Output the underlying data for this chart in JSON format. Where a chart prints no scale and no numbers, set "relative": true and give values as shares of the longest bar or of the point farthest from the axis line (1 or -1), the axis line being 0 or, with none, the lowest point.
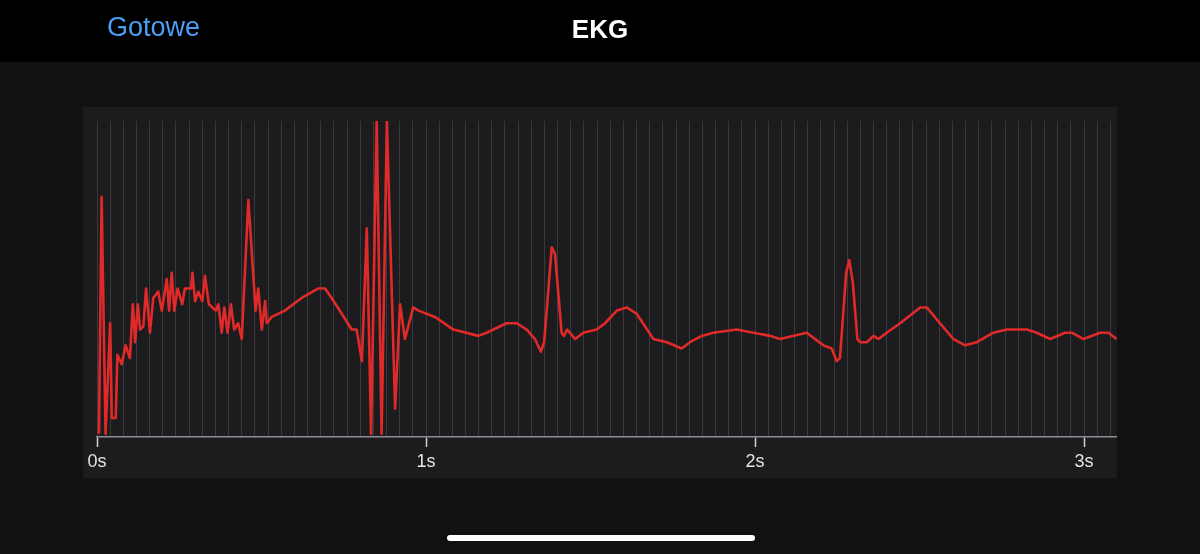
{
  "chart_data": {
    "type": "line",
    "title": "EKG",
    "annotations": [
      "Gotowe"
    ],
    "relative": true,
    "color": "#e02a2a",
    "marker": "none",
    "grid": "x",
    "xlim": [
      0,
      3.1
    ],
    "xticks": [
      {
        "value": 0,
        "label": "0s"
      },
      {
        "value": 0.04,
        "label": null
      },
      {
        "value": 0.08,
        "label": null
      },
      {
        "value": 0.12,
        "label": null
      },
      {
        "value": 0.16,
        "label": null
      },
      {
        "value": 0.2,
        "label": null
      },
      {
        "value": 0.24,
        "label": null
      },
      {
        "value": 0.28,
        "label": null
      },
      {
        "value": 0.32,
        "label": null
      },
      {
        "value": 0.36,
        "label": null
      },
      {
        "value": 0.4,
        "label": null
      },
      {
        "value": 0.44,
        "label": null
      },
      {
        "value": 0.48,
        "label": null
      },
      {
        "value": 0.52,
        "label": null
      },
      {
        "value": 0.56,
        "label": null
      },
      {
        "value": 0.6,
        "label": null
      },
      {
        "value": 0.64,
        "label": null
      },
      {
        "value": 0.68,
        "label": null
      },
      {
        "value": 0.72,
        "label": null
      },
      {
        "value": 0.76,
        "label": null
      },
      {
        "value": 0.8,
        "label": null
      },
      {
        "value": 0.84,
        "label": null
      },
      {
        "value": 0.88,
        "label": null
      },
      {
        "value": 0.92,
        "label": null
      },
      {
        "value": 0.96,
        "label": null
      },
      {
        "value": 1,
        "label": "1s"
      },
      {
        "value": 1.04,
        "label": null
      },
      {
        "value": 1.08,
        "label": null
      },
      {
        "value": 1.12,
        "label": null
      },
      {
        "value": 1.16,
        "label": null
      },
      {
        "value": 1.2,
        "label": null
      },
      {
        "value": 1.24,
        "label": null
      },
      {
        "value": 1.28,
        "label": null
      },
      {
        "value": 1.32,
        "label": null
      },
      {
        "value": 1.36,
        "label": null
      },
      {
        "value": 1.4,
        "label": null
      },
      {
        "value": 1.44,
        "label": null
      },
      {
        "value": 1.48,
        "label": null
      },
      {
        "value": 1.52,
        "label": null
      },
      {
        "value": 1.56,
        "label": null
      },
      {
        "value": 1.6,
        "label": null
      },
      {
        "value": 1.64,
        "label": null
      },
      {
        "value": 1.68,
        "label": null
      },
      {
        "value": 1.72,
        "label": null
      },
      {
        "value": 1.76,
        "label": null
      },
      {
        "value": 1.8,
        "label": null
      },
      {
        "value": 1.84,
        "label": null
      },
      {
        "value": 1.88,
        "label": null
      },
      {
        "value": 1.92,
        "label": null
      },
      {
        "value": 1.96,
        "label": null
      },
      {
        "value": 2,
        "label": "2s"
      },
      {
        "value": 2.04,
        "label": null
      },
      {
        "value": 2.08,
        "label": null
      },
      {
        "value": 2.12,
        "label": null
      },
      {
        "value": 2.16,
        "label": null
      },
      {
        "value": 2.2,
        "label": null
      },
      {
        "value": 2.24,
        "label": null
      },
      {
        "value": 2.28,
        "label": null
      },
      {
        "value": 2.32,
        "label": null
      },
      {
        "value": 2.36,
        "label": null
      },
      {
        "value": 2.4,
        "label": null
      },
      {
        "value": 2.44,
        "label": null
      },
      {
        "value": 2.48,
        "label": null
      },
      {
        "value": 2.52,
        "label": null
      },
      {
        "value": 2.56,
        "label": null
      },
      {
        "value": 2.6,
        "label": null
      },
      {
        "value": 2.64,
        "label": null
      },
      {
        "value": 2.68,
        "label": null
      },
      {
        "value": 2.72,
        "label": null
      },
      {
        "value": 2.76,
        "label": null
      },
      {
        "value": 2.8,
        "label": null
      },
      {
        "value": 2.84,
        "label": null
      },
      {
        "value": 2.88,
        "label": null
      },
      {
        "value": 2.92,
        "label": null
      },
      {
        "value": 2.96,
        "label": null
      },
      {
        "value": 3,
        "label": "3s"
      },
      {
        "value": 3.04,
        "label": null
      },
      {
        "value": 3.08,
        "label": null
      }
    ],
    "x": [
      0.006,
      0.014,
      0.026,
      0.04,
      0.045,
      0.057,
      0.062,
      0.075,
      0.087,
      0.1,
      0.109,
      0.116,
      0.124,
      0.131,
      0.141,
      0.149,
      0.161,
      0.171,
      0.186,
      0.197,
      0.212,
      0.219,
      0.227,
      0.235,
      0.245,
      0.259,
      0.267,
      0.286,
      0.29,
      0.298,
      0.308,
      0.32,
      0.328,
      0.34,
      0.361,
      0.369,
      0.379,
      0.387,
      0.397,
      0.407,
      0.417,
      0.429,
      0.44,
      0.46,
      0.482,
      0.49,
      0.501,
      0.511,
      0.516,
      0.531,
      0.571,
      0.622,
      0.673,
      0.693,
      0.713,
      0.744,
      0.774,
      0.789,
      0.805,
      0.82,
      0.833,
      0.85,
      0.865,
      0.881,
      0.906,
      0.921,
      0.936,
      0.961,
      0.977,
      1.027,
      1.083,
      1.159,
      1.184,
      1.245,
      1.276,
      1.306,
      1.331,
      1.349,
      1.359,
      1.382,
      1.392,
      1.412,
      1.419,
      1.429,
      1.453,
      1.478,
      1.519,
      1.544,
      1.58,
      1.61,
      1.64,
      1.691,
      1.732,
      1.777,
      1.802,
      1.838,
      1.873,
      1.944,
      1.995,
      2.046,
      2.076,
      2.157,
      2.208,
      2.233,
      2.248,
      2.258,
      2.277,
      2.286,
      2.297,
      2.311,
      2.319,
      2.34,
      2.36,
      2.375,
      2.4,
      2.441,
      2.502,
      2.522,
      2.562,
      2.603,
      2.638,
      2.674,
      2.724,
      2.765,
      2.826,
      2.856,
      2.897,
      2.942,
      2.963,
      2.998,
      3.049,
      3.074,
      3.099
    ],
    "values": [
      0.01,
      0.76,
      0.01,
      0.36,
      0.06,
      0.06,
      0.26,
      0.23,
      0.29,
      0.25,
      0.42,
      0.3,
      0.42,
      0.34,
      0.35,
      0.47,
      0.33,
      0.44,
      0.46,
      0.4,
      0.5,
      0.4,
      0.52,
      0.4,
      0.47,
      0.42,
      0.47,
      0.47,
      0.52,
      0.43,
      0.46,
      0.43,
      0.51,
      0.42,
      0.4,
      0.42,
      0.33,
      0.41,
      0.33,
      0.42,
      0.34,
      0.36,
      0.31,
      0.75,
      0.4,
      0.47,
      0.34,
      0.43,
      0.36,
      0.38,
      0.4,
      0.44,
      0.47,
      0.47,
      0.44,
      0.39,
      0.34,
      0.34,
      0.24,
      0.66,
      0.01,
      1,
      0.01,
      1,
      0.09,
      0.42,
      0.31,
      0.41,
      0.4,
      0.38,
      0.34,
      0.32,
      0.33,
      0.36,
      0.36,
      0.34,
      0.31,
      0.27,
      0.3,
      0.6,
      0.58,
      0.33,
      0.32,
      0.34,
      0.31,
      0.33,
      0.34,
      0.36,
      0.4,
      0.41,
      0.39,
      0.31,
      0.3,
      0.28,
      0.3,
      0.32,
      0.33,
      0.34,
      0.33,
      0.32,
      0.31,
      0.33,
      0.29,
      0.28,
      0.24,
      0.25,
      0.52,
      0.56,
      0.49,
      0.31,
      0.3,
      0.3,
      0.32,
      0.31,
      0.33,
      0.36,
      0.41,
      0.41,
      0.36,
      0.31,
      0.29,
      0.3,
      0.33,
      0.34,
      0.34,
      0.33,
      0.31,
      0.33,
      0.33,
      0.31,
      0.33,
      0.33,
      0.31
    ]
  }
}
